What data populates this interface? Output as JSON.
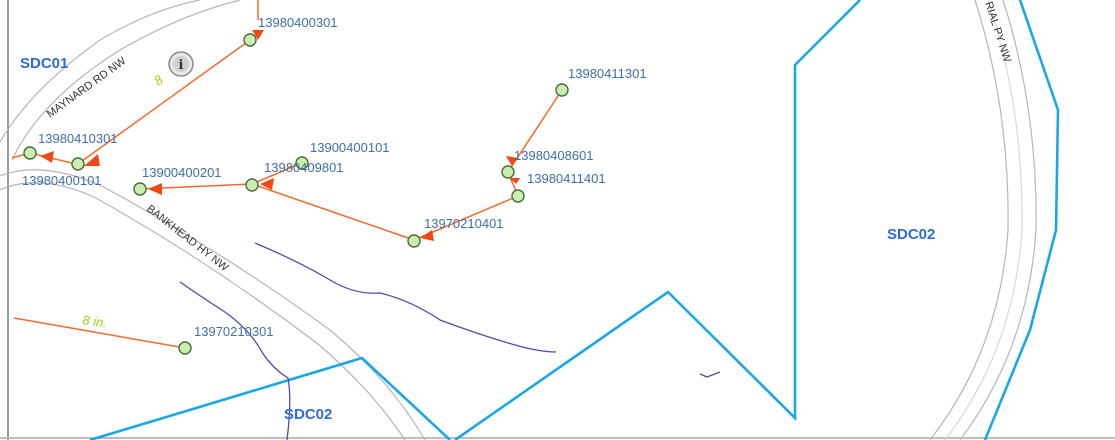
{
  "map": {
    "zones": [
      {
        "id": "sdc01",
        "label": "SDC01"
      },
      {
        "id": "sdc02-east",
        "label": "SDC02"
      },
      {
        "id": "sdc02-south",
        "label": "SDC02"
      }
    ],
    "roads": [
      {
        "id": "maynard",
        "label": "MAYNARD RD NW"
      },
      {
        "id": "bankhead",
        "label": "BANKHEAD HY NW"
      },
      {
        "id": "memorial",
        "label": "RIAL PY NW"
      }
    ],
    "nodes": [
      "13980400301",
      "13980411301",
      "13980410301",
      "13900400101",
      "13980408601",
      "13980400101",
      "13900400201",
      "13980409801",
      "13980411401",
      "13970210401",
      "13970210301"
    ],
    "pipe_labels": [
      "8",
      "8 in."
    ],
    "colors": {
      "zone_boundary": "#1aa7e6",
      "pipe": "#f26b2c",
      "arrow": "#ee4a12",
      "node_fill": "#c9efb0",
      "node_stroke": "#4a6a3a",
      "stream": "#4b4bb0",
      "road_edge": "#b5b5b5"
    },
    "icons": [
      "info-icon"
    ]
  }
}
